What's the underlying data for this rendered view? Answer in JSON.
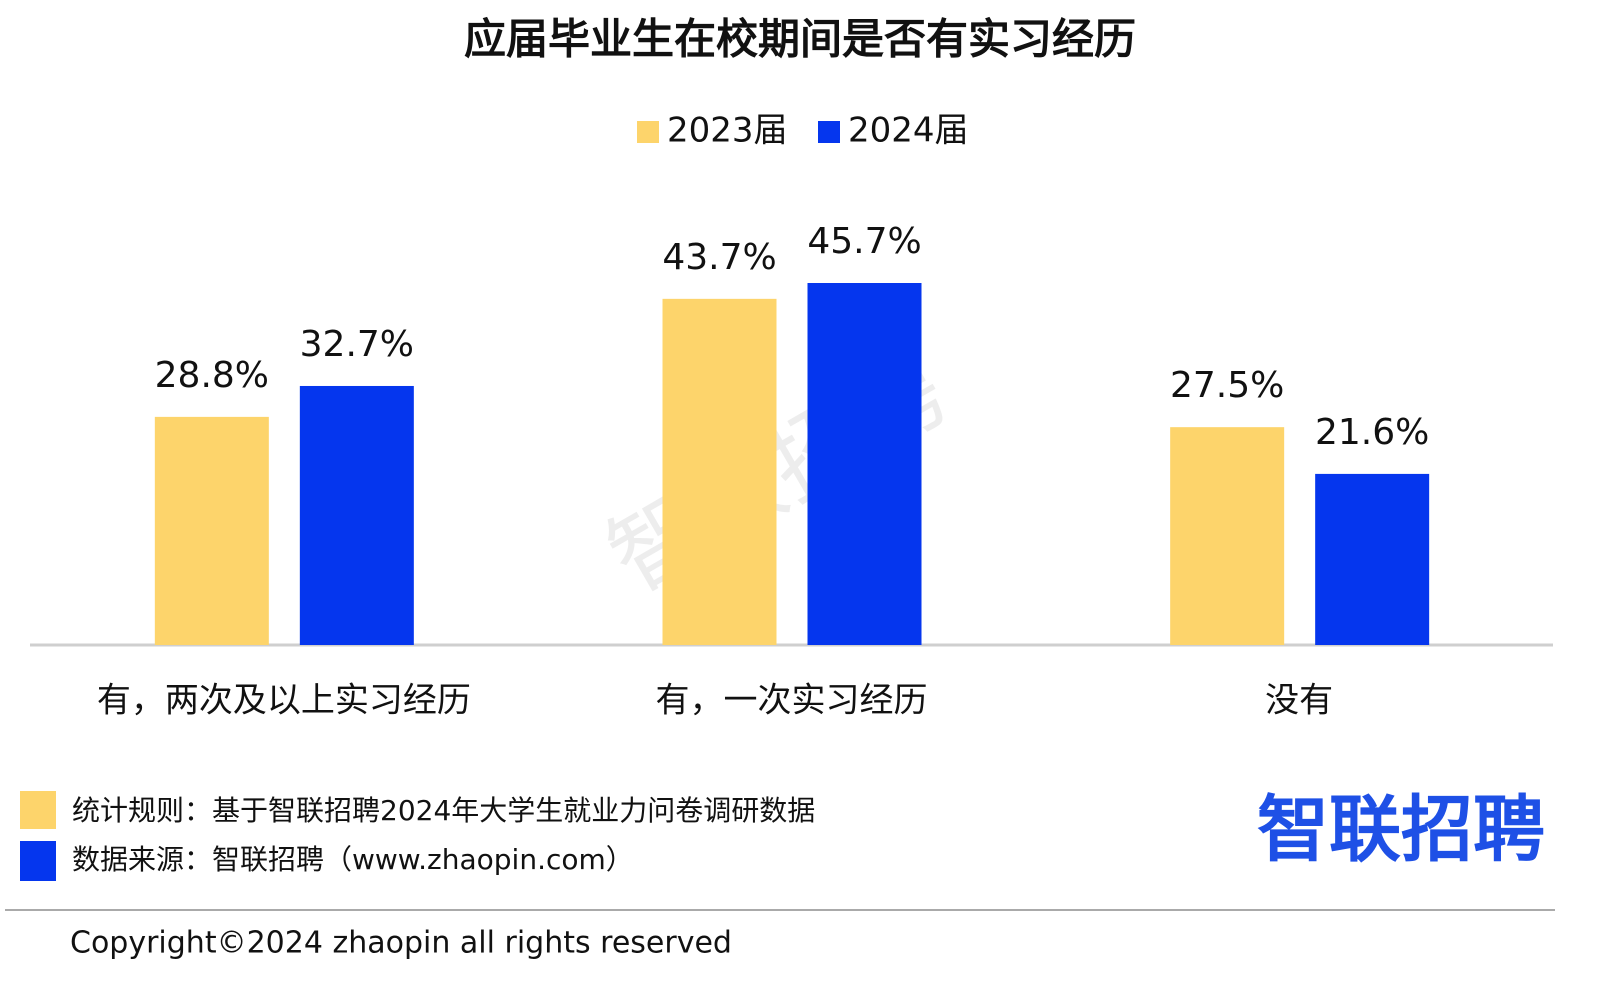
{
  "chart_data": {
    "type": "bar",
    "title": "应届毕业生在校期间是否有实习经历",
    "categories": [
      "有，两次及以上实习经历",
      "有，一次实习经历",
      "没有"
    ],
    "series": [
      {
        "name": "2023届",
        "color": "#fdd46b",
        "values": [
          28.8,
          43.7,
          27.5
        ],
        "value_labels": [
          "28.8%",
          "43.7%",
          "27.5%"
        ]
      },
      {
        "name": "2024届",
        "color": "#0536ee",
        "values": [
          32.7,
          45.7,
          21.6
        ],
        "value_labels": [
          "32.7%",
          "45.7%",
          "21.6%"
        ]
      }
    ]
  },
  "watermark": "智联招聘",
  "notes": [
    "统计规则：基于智联招聘2024年大学生就业力问卷调研数据",
    "数据来源：智联招聘（www.zhaopin.com）"
  ],
  "logo": "智联招聘",
  "copyright": "Copyright©2024 zhaopin all rights reserved"
}
